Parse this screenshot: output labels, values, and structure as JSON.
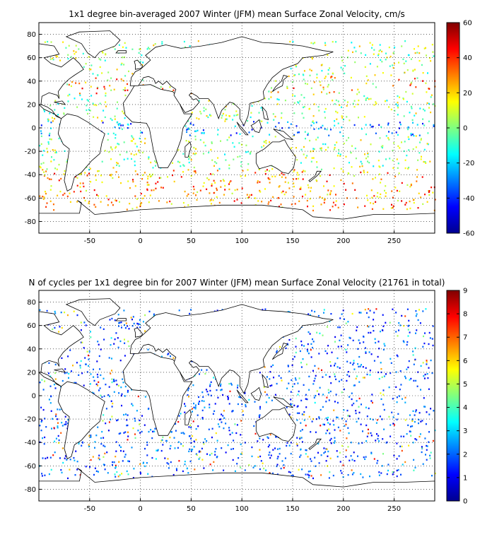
{
  "panels": [
    {
      "id": "velocity",
      "title": "1x1 degree bin-averaged 2007 Winter (JFM) mean Surface Zonal Velocity, cm/s",
      "x_ticks": [
        "-50",
        "0",
        "50",
        "100",
        "150",
        "200",
        "250"
      ],
      "y_ticks": [
        "80",
        "60",
        "40",
        "20",
        "0",
        "-20",
        "-40",
        "-60",
        "-80"
      ],
      "colorbar_ticks": [
        "60",
        "40",
        "20",
        "0",
        "-20",
        "-40",
        "-60"
      ],
      "colorbar_range": [
        -60,
        60
      ],
      "colormap": "jet"
    },
    {
      "id": "counts",
      "title": "N of cycles per 1x1 degree bin for 2007 Winter (JFM) mean Surface Zonal Velocity (21761 in total)",
      "x_ticks": [
        "-50",
        "0",
        "50",
        "100",
        "150",
        "200",
        "250"
      ],
      "y_ticks": [
        "80",
        "60",
        "40",
        "20",
        "0",
        "-20",
        "-40",
        "-60",
        "-80"
      ],
      "colorbar_ticks": [
        "9",
        "8",
        "7",
        "6",
        "5",
        "4",
        "3",
        "2",
        "1",
        "0"
      ],
      "colorbar_range": [
        0,
        9
      ],
      "colormap": "jet"
    }
  ],
  "map": {
    "lon_range": [
      -100,
      290
    ],
    "lat_range": [
      -90,
      90
    ],
    "grid": "dotted"
  }
}
